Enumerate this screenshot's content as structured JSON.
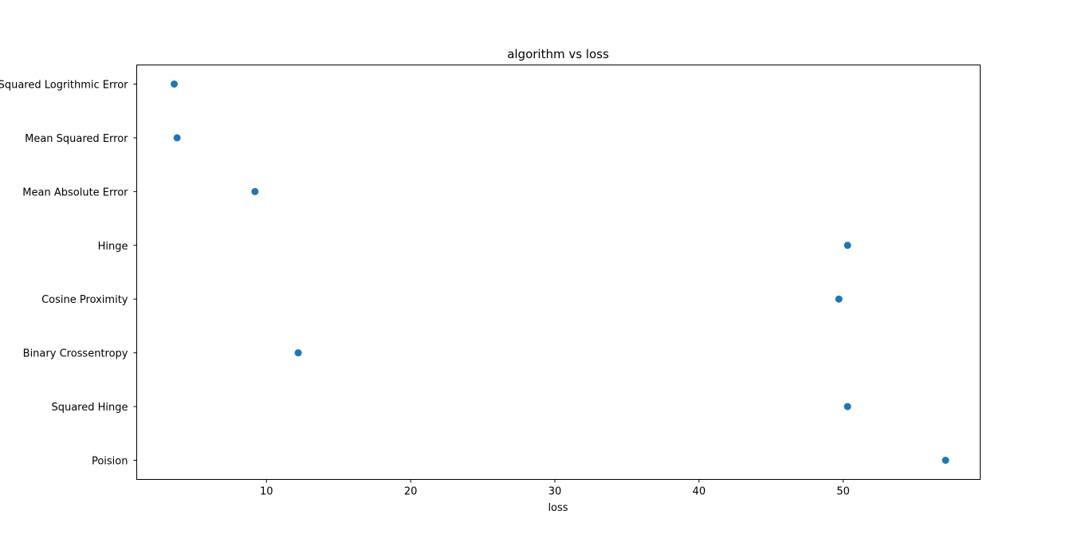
{
  "chart_data": {
    "type": "scatter",
    "title": "algorithm vs loss",
    "xlabel": "loss",
    "ylabel": "",
    "xlim": [
      1,
      59.5
    ],
    "xticks": [
      10,
      20,
      30,
      40,
      50
    ],
    "categories": [
      "Mean Squared Logrithmic Error",
      "Mean Squared Error",
      "Mean Absolute Error",
      "Hinge",
      "Cosine Proximity",
      "Binary Crossentropy",
      "Squared Hinge",
      "Poision"
    ],
    "values": [
      3.6,
      3.8,
      9.2,
      50.3,
      49.7,
      12.2,
      50.3,
      57.1
    ],
    "grid": false,
    "marker_color": "#1f77b4"
  }
}
